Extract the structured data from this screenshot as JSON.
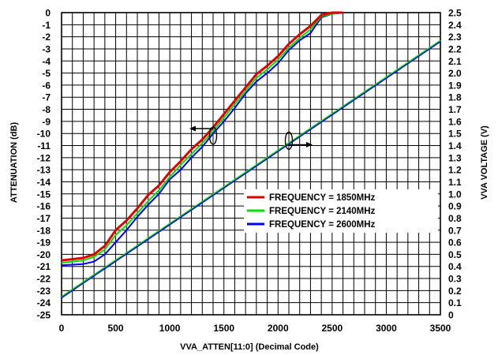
{
  "chart_data": {
    "type": "line",
    "xlabel": "VVA_ATTEN[11:0] (Decimal Code)",
    "ylabel_left": "ATTENUATION (dB)",
    "ylabel_right": "VVA VOLTAGE (V)",
    "xlim": [
      0,
      3500
    ],
    "ylim_left": [
      -25,
      0
    ],
    "ylim_right": [
      0,
      2.5
    ],
    "x_ticks": [
      0,
      500,
      1000,
      1500,
      2000,
      2500,
      3000,
      3500
    ],
    "x_minor_step": 100,
    "y_left_ticks": [
      0,
      -1,
      -2,
      -3,
      -4,
      -5,
      -6,
      -7,
      -8,
      -9,
      -10,
      -11,
      -12,
      -13,
      -14,
      -15,
      -16,
      -17,
      -18,
      -19,
      -20,
      -21,
      -22,
      -23,
      -24,
      -25
    ],
    "y_right_ticks": [
      "2.5",
      "2.4",
      "2.3",
      "2.2",
      "2.1",
      "2.0",
      "1.9",
      "1.8",
      "1.7",
      "1.6",
      "1.5",
      "1.4",
      "1.3",
      "1.2",
      "1.1",
      "1.0",
      "0.9",
      "0.8",
      "0.7",
      "0.6",
      "0.5",
      "0.4",
      "0.3",
      "0.2",
      "0.1",
      "0"
    ],
    "grid": true,
    "legend_position": "lower-right",
    "attenuation_series": [
      {
        "name": "FREQUENCY = 1850MHz",
        "color": "#e00000",
        "axis": "left",
        "x": [
          0,
          200,
          300,
          400,
          500,
          600,
          700,
          800,
          900,
          1000,
          1100,
          1200,
          1300,
          1400,
          1500,
          1600,
          1700,
          1800,
          1900,
          2000,
          2100,
          2200,
          2300,
          2400,
          2500,
          2600
        ],
        "y": [
          -20.5,
          -20.3,
          -20.0,
          -19.3,
          -18.0,
          -17.2,
          -16.2,
          -15.1,
          -14.3,
          -13.2,
          -12.3,
          -11.3,
          -10.5,
          -9.5,
          -8.4,
          -7.3,
          -6.2,
          -5.1,
          -4.4,
          -3.6,
          -2.6,
          -1.8,
          -1.1,
          -0.2,
          0.0,
          0.0
        ]
      },
      {
        "name": "FREQUENCY = 2140MHz",
        "color": "#00e000",
        "axis": "left",
        "x": [
          0,
          200,
          300,
          400,
          500,
          600,
          700,
          800,
          900,
          1000,
          1100,
          1200,
          1300,
          1400,
          1500,
          1600,
          1700,
          1800,
          1900,
          2000,
          2100,
          2200,
          2300,
          2400,
          2500,
          2600
        ],
        "y": [
          -20.7,
          -20.5,
          -20.2,
          -19.6,
          -18.4,
          -17.6,
          -16.6,
          -15.6,
          -14.7,
          -13.6,
          -12.6,
          -11.7,
          -10.8,
          -9.8,
          -8.7,
          -7.6,
          -6.5,
          -5.4,
          -4.7,
          -3.9,
          -2.9,
          -2.1,
          -1.4,
          -0.3,
          -0.1,
          0.0
        ]
      },
      {
        "name": "FREQUENCY = 2600MHz",
        "color": "#0000ff",
        "axis": "left",
        "x": [
          0,
          200,
          300,
          400,
          500,
          600,
          700,
          800,
          900,
          1000,
          1100,
          1200,
          1300,
          1400,
          1500,
          1600,
          1700,
          1800,
          1900,
          2000,
          2100,
          2200,
          2300,
          2400,
          2500,
          2600
        ],
        "y": [
          -20.9,
          -20.8,
          -20.6,
          -20.0,
          -19.0,
          -18.0,
          -16.9,
          -15.9,
          -15.0,
          -13.8,
          -13.0,
          -12.0,
          -11.1,
          -10.0,
          -9.0,
          -7.9,
          -6.7,
          -5.7,
          -5.0,
          -4.2,
          -3.1,
          -2.3,
          -1.7,
          -0.4,
          -0.1,
          0.0
        ]
      }
    ],
    "voltage_series": [
      {
        "color": "#00e000",
        "axis": "right",
        "x": [
          0,
          3500
        ],
        "y": [
          0.15,
          2.27
        ]
      },
      {
        "color": "#0000ff",
        "axis": "right",
        "x": [
          0,
          3500
        ],
        "y": [
          0.14,
          2.26
        ]
      }
    ],
    "annotations": [
      {
        "type": "axis-indicator",
        "points_to": "left",
        "near_x": 1400,
        "near_y_left": -9.4
      },
      {
        "type": "axis-indicator",
        "points_to": "right",
        "near_x": 2100,
        "near_y_right": 1.44
      }
    ]
  }
}
